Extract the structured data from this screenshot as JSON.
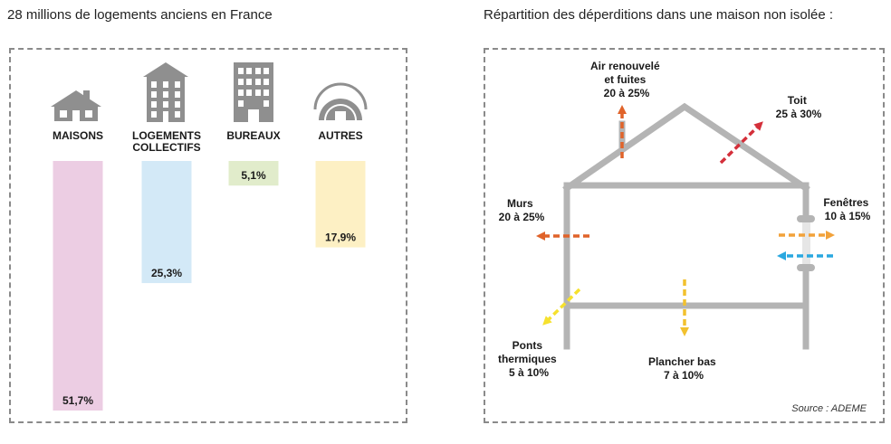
{
  "left": {
    "title": "28 millions de logements anciens en France"
  },
  "right": {
    "title": "Répartition des déperditions dans une maison non isolée :",
    "source": "Source : ADEME",
    "labels": {
      "air": [
        "Air renouvelé",
        "et fuites",
        "20 à 25%"
      ],
      "toit": [
        "Toit",
        "25 à 30%"
      ],
      "murs": [
        "Murs",
        "20 à 25%"
      ],
      "fenetres": [
        "Fenêtres",
        "10 à 15%"
      ],
      "ponts": [
        "Ponts",
        "thermiques",
        "5 à 10%"
      ],
      "plancher": [
        "Plancher bas",
        "7 à 10%"
      ]
    }
  },
  "chart_data": {
    "type": "bar",
    "title": "28 millions de logements anciens en France",
    "categories": [
      "MAISONS",
      "LOGEMENTS COLLECTIFS",
      "BUREAUX",
      "AUTRES"
    ],
    "category_lines": [
      [
        "MAISONS"
      ],
      [
        "LOGEMENTS",
        "COLLECTIFS"
      ],
      [
        "BUREAUX"
      ],
      [
        "AUTRES"
      ]
    ],
    "values": [
      51.7,
      25.3,
      5.1,
      17.9
    ],
    "value_labels": [
      "51,7%",
      "25,3%",
      "5,1%",
      "17,9%"
    ],
    "colors": [
      "#eccde3",
      "#d3e9f7",
      "#e1eccb",
      "#fdf0c4"
    ],
    "icons": [
      "house-icon",
      "apartment-building-icon",
      "office-building-icon",
      "dome-shelter-icon"
    ],
    "ylim": [
      0,
      51.7
    ],
    "grid": false
  }
}
